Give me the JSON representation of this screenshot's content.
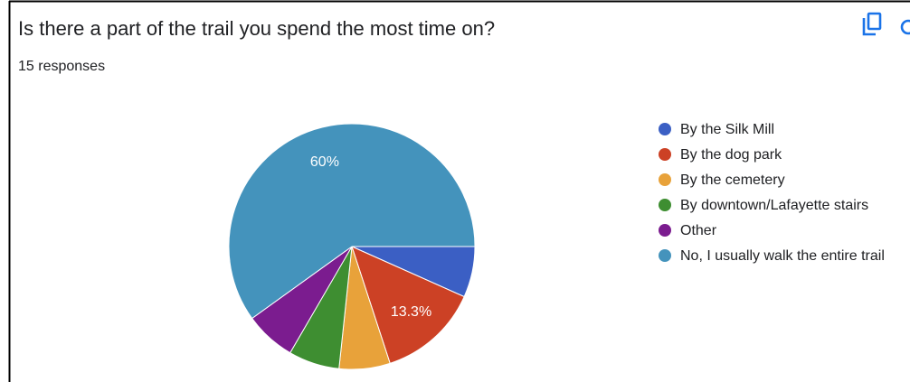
{
  "chart_data": {
    "type": "pie",
    "title": "Is there a part of the trail you spend the most time on?",
    "subtitle": "15 responses",
    "categories": [
      "By the Silk Mill",
      "By the dog park",
      "By the cemetery",
      "By downtown/Lafayette stairs",
      "Other",
      "No, I usually walk the entire trail"
    ],
    "values": [
      6.7,
      13.3,
      6.7,
      6.7,
      6.7,
      60
    ],
    "value_labels": [
      null,
      "13.3%",
      null,
      null,
      null,
      "60%"
    ],
    "colors": [
      "#3b5fc4",
      "#cc4125",
      "#e8a23a",
      "#3e8e31",
      "#7b1c8f",
      "#4493bc"
    ],
    "legend": "right"
  }
}
